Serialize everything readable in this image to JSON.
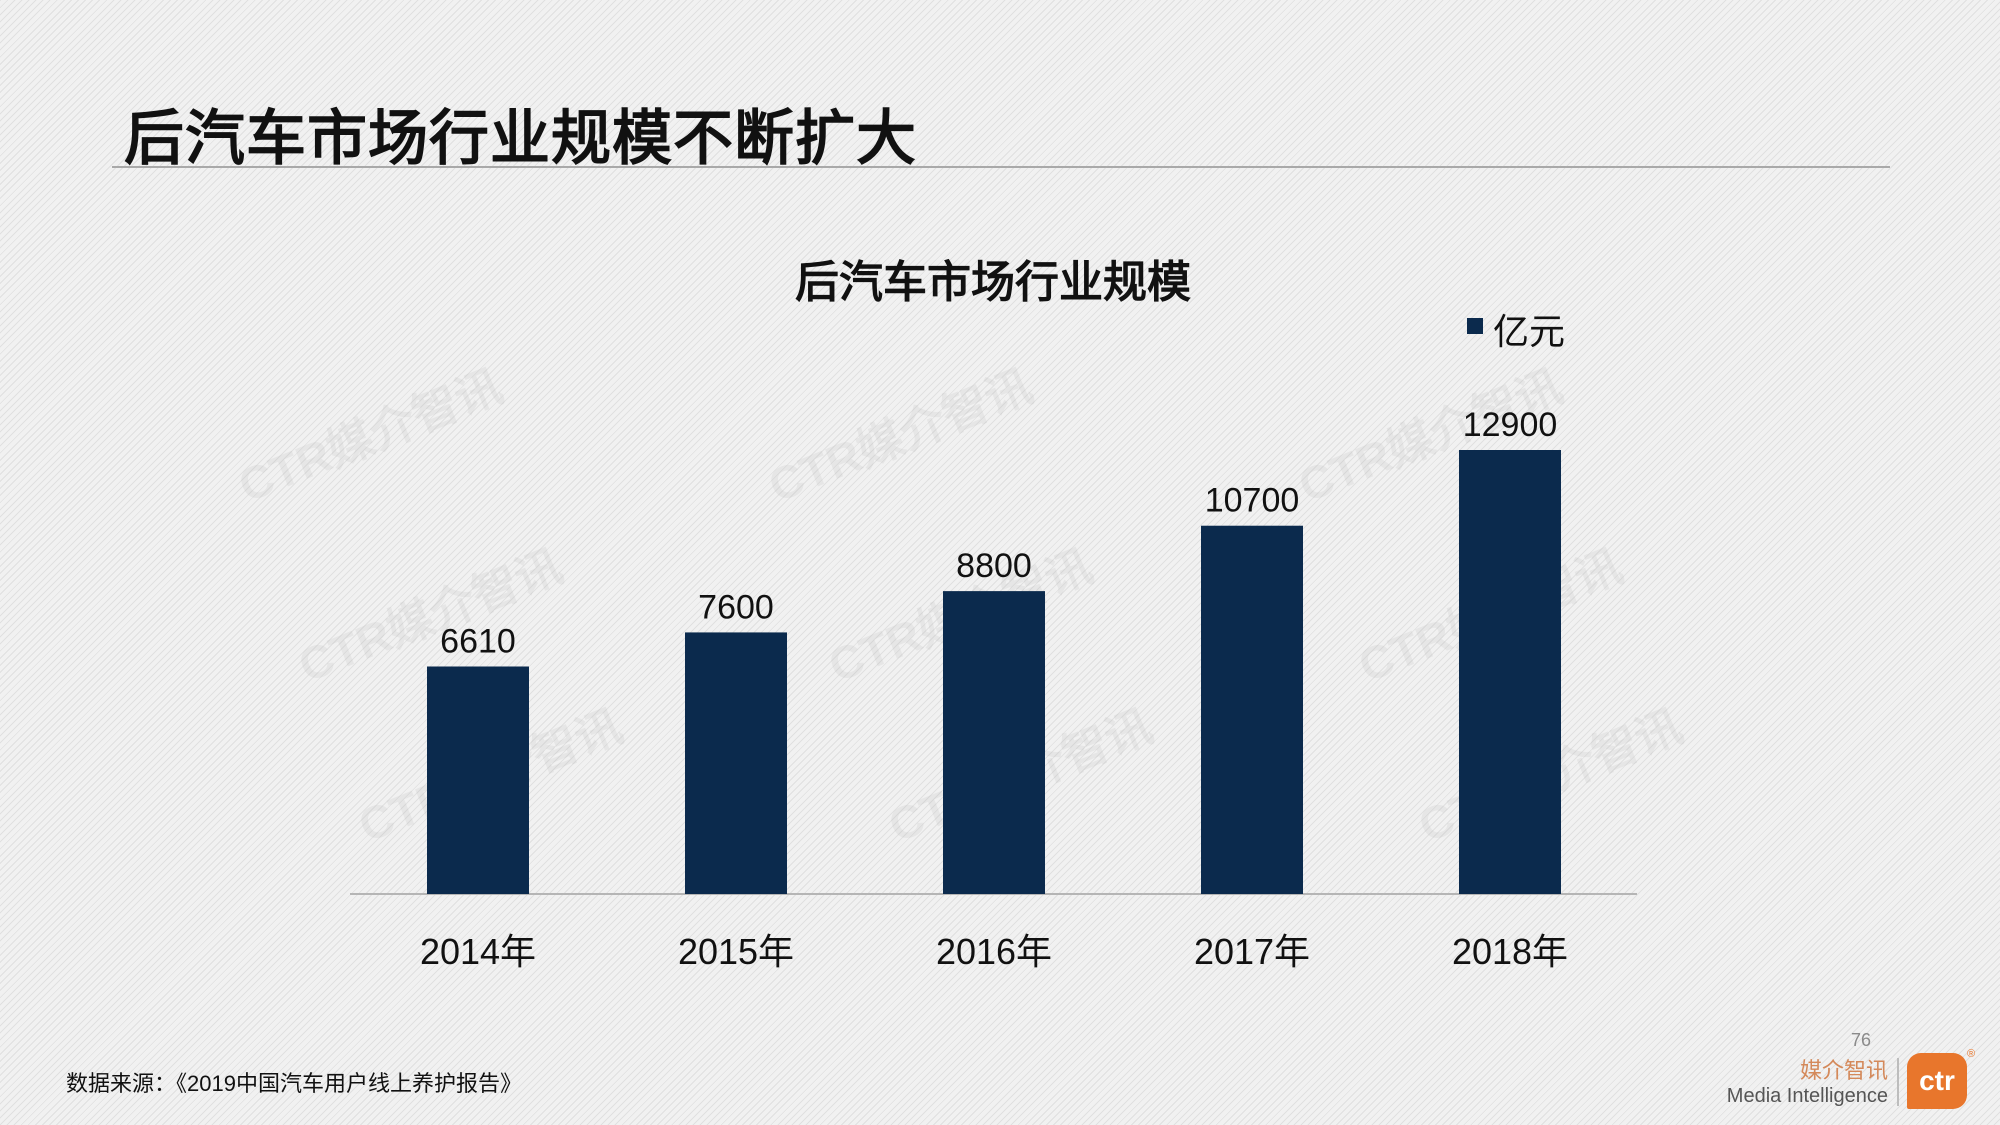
{
  "slide": {
    "title": "后汽车市场行业规模不断扩大",
    "source": "数据来源：《2019中国汽车用户线上养护报告》",
    "page_number": "76"
  },
  "branding": {
    "name_cn": "媒介智讯",
    "name_en": "Media Intelligence",
    "logo_text": "ctr",
    "registered_mark": "®",
    "watermark_text": "CTR媒介智讯"
  },
  "colors": {
    "bar": "#0b2a4d",
    "brand_orange": "#e8762c"
  },
  "chart_data": {
    "type": "bar",
    "title": "后汽车市场行业规模",
    "categories": [
      "2014年",
      "2015年",
      "2016年",
      "2017年",
      "2018年"
    ],
    "series": [
      {
        "name": "亿元",
        "values": [
          6610,
          7600,
          8800,
          10700,
          12900
        ]
      }
    ],
    "value_labels": [
      "6610",
      "7600",
      "8800",
      "10700",
      "12900"
    ],
    "legend_position": "top-right",
    "ylim": [
      0,
      12900
    ],
    "gridlines": false,
    "xlabel": "",
    "ylabel": ""
  }
}
